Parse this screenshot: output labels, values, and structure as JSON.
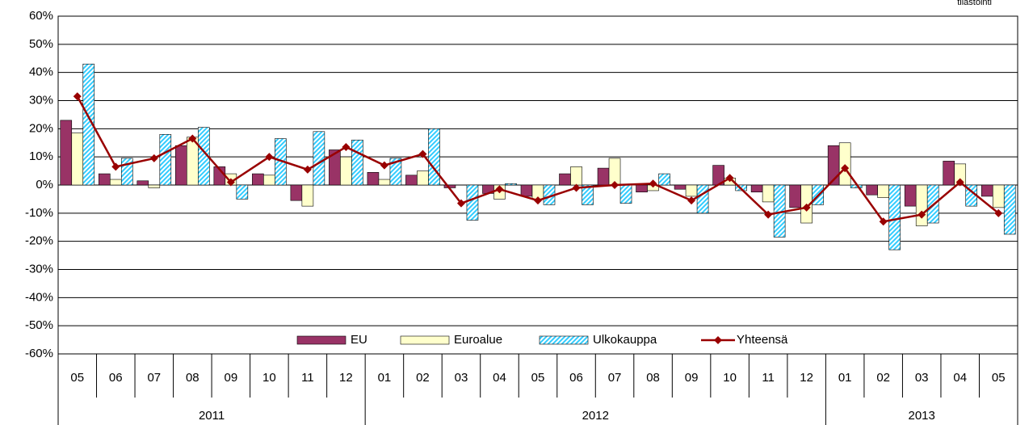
{
  "chart_data": {
    "type": "bar_line",
    "annotation": "tilastointi",
    "categories": [
      "05",
      "06",
      "07",
      "08",
      "09",
      "10",
      "11",
      "12",
      "01",
      "02",
      "03",
      "04",
      "05",
      "06",
      "07",
      "08",
      "09",
      "10",
      "11",
      "12",
      "01",
      "02",
      "03",
      "04",
      "05"
    ],
    "year_groups": [
      {
        "label": "2011",
        "count": 8
      },
      {
        "label": "2012",
        "count": 12
      },
      {
        "label": "2013",
        "count": 5
      }
    ],
    "ylim": [
      -60,
      60
    ],
    "yticks": [
      {
        "value": -60,
        "label": "-60%"
      },
      {
        "value": -50,
        "label": "-50%"
      },
      {
        "value": -40,
        "label": "-40%"
      },
      {
        "value": -30,
        "label": "-30%"
      },
      {
        "value": -20,
        "label": "-20%"
      },
      {
        "value": -10,
        "label": "-10%"
      },
      {
        "value": 0,
        "label": "0%"
      },
      {
        "value": 10,
        "label": "10%"
      },
      {
        "value": 20,
        "label": "20%"
      },
      {
        "value": 30,
        "label": "30%"
      },
      {
        "value": 40,
        "label": "40%"
      },
      {
        "value": 50,
        "label": "50%"
      },
      {
        "value": 60,
        "label": "60%"
      }
    ],
    "grid": true,
    "legend": "bottom",
    "series": [
      {
        "name": "EU",
        "kind": "bar",
        "color": "#993366",
        "values": [
          23,
          4,
          1.5,
          14,
          6.5,
          4,
          -5.5,
          12.5,
          4.5,
          3.5,
          -1,
          -3,
          -4,
          4,
          6,
          -2.5,
          -1.5,
          7,
          -2.5,
          -8,
          14,
          -3.5,
          -7.5,
          8.5,
          -4
        ]
      },
      {
        "name": "Euroalue",
        "kind": "bar",
        "color": "#ffffcc",
        "values": [
          18.5,
          2,
          -1,
          17,
          4,
          3.5,
          -7.5,
          10,
          2,
          5,
          0,
          -5,
          -5,
          6.5,
          9.5,
          -2,
          -4,
          2.5,
          -6,
          -13.5,
          15,
          -4.5,
          -14.5,
          7.5,
          -8
        ]
      },
      {
        "name": "Ulkokauppa",
        "kind": "bar",
        "color": "#33ccff",
        "hatch": true,
        "values": [
          43,
          9.5,
          18,
          20.5,
          -5,
          16.5,
          19,
          16,
          9.5,
          20,
          -12.5,
          0.5,
          -7,
          -7,
          -6.5,
          4,
          -10,
          -2,
          -18.5,
          -7,
          -1,
          -23,
          -13.5,
          -7.5,
          -17.5
        ]
      },
      {
        "name": "Yhteensä",
        "kind": "line",
        "color": "#990000",
        "values": [
          31.5,
          6.5,
          9.5,
          16.5,
          1,
          10,
          5.5,
          13.5,
          7,
          11,
          -6.5,
          -1.5,
          -5.5,
          -1,
          0,
          0.5,
          -5.5,
          2.5,
          -10.5,
          -8,
          6,
          -13,
          -10.5,
          1,
          -10
        ]
      }
    ]
  }
}
